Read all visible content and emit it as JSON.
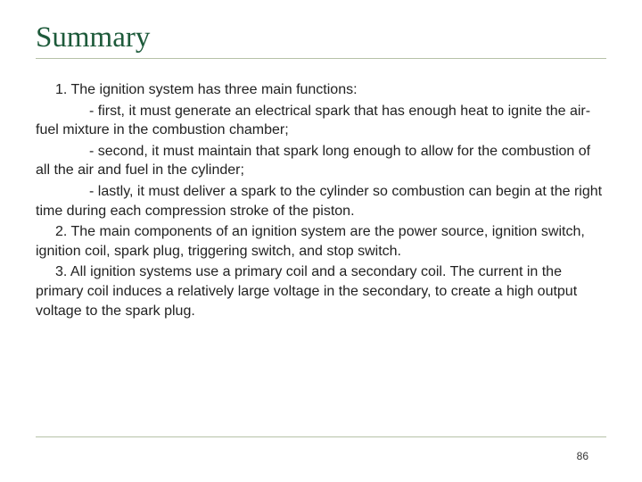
{
  "title": "Summary",
  "colors": {
    "title": "#1d5a3a",
    "underline": "#b6c2a8",
    "body_text": "#222222",
    "background": "#ffffff"
  },
  "typography": {
    "title_font": "Georgia, 'Times New Roman', serif",
    "title_size_pt": 25,
    "body_font": "Arial, Helvetica, sans-serif",
    "body_size_pt": 12
  },
  "body": {
    "p1": "1. The ignition system has three main functions:",
    "p1a": "- first, it must generate an electrical spark that has enough heat to ignite the air-fuel mixture in the combustion chamber;",
    "p1b": "- second, it must maintain that spark long enough to allow for the combustion of all the air and fuel in the cylinder;",
    "p1c": "- lastly, it must deliver a spark to the cylinder so combustion can begin at the right time during each compression stroke of the piston.",
    "p2": "2. The main components of an ignition system are the power source, ignition switch, ignition coil, spark plug, triggering switch, and stop switch.",
    "p3": "3. All ignition systems use a primary coil and a secondary coil. The current in the primary coil induces a relatively large voltage in the secondary, to create a high output voltage to the spark plug."
  },
  "page_number": "86"
}
